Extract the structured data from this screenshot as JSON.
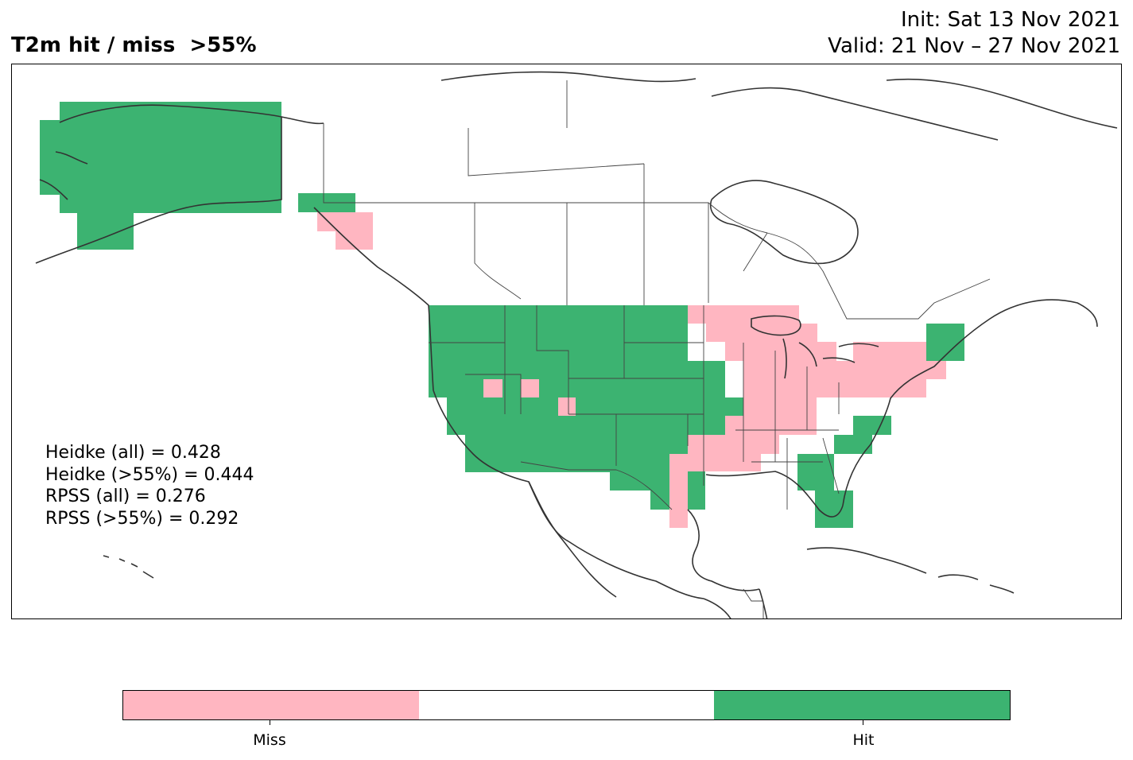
{
  "title": "T2m hit / miss  >55%",
  "init_label": "Init: Sat 13 Nov 2021",
  "valid_label": "Valid: 21 Nov – 27 Nov 2021",
  "stats": [
    "Heidke (all) = 0.428",
    "Heidke (>55%) = 0.444",
    "RPSS (all) = 0.276",
    "RPSS (>55%) = 0.292"
  ],
  "legend": {
    "segments": [
      {
        "label": "Miss",
        "color": "#ffb6c1"
      },
      {
        "label": "",
        "color": "#ffffff"
      },
      {
        "label": "Hit",
        "color": "#3cb371"
      }
    ]
  },
  "colors": {
    "hit": "#3cb371",
    "miss": "#ffb6c1",
    "coast": "#333333",
    "border": "#444444"
  }
}
